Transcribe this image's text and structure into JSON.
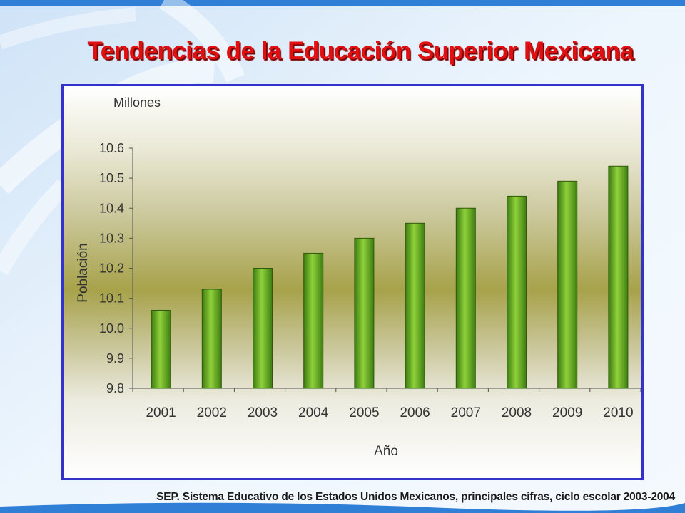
{
  "slide": {
    "title": "Tendencias de la Educación Superior Mexicana",
    "source": "SEP. Sistema Educativo de los Estados Unidos Mexicanos, principales cifras, ciclo escolar 2003-2004"
  },
  "colors": {
    "title": "#e01010",
    "frame_border": "#3333cc",
    "bar_fill": "#5aa21a",
    "bar_edge": "#2f5a0c"
  },
  "chart_data": {
    "type": "bar",
    "unit_label": "Millones",
    "xlabel": "Año",
    "ylabel": "Población",
    "categories": [
      "2001",
      "2002",
      "2003",
      "2004",
      "2005",
      "2006",
      "2007",
      "2008",
      "2009",
      "2010"
    ],
    "values": [
      10.06,
      10.13,
      10.2,
      10.25,
      10.3,
      10.35,
      10.4,
      10.44,
      10.49,
      10.54
    ],
    "ylim": [
      9.8,
      10.6
    ],
    "yticks": [
      "9.8",
      "9.9",
      "10.0",
      "10.1",
      "10.2",
      "10.3",
      "10.4",
      "10.5",
      "10.6"
    ],
    "grid": false,
    "legend": "none"
  }
}
